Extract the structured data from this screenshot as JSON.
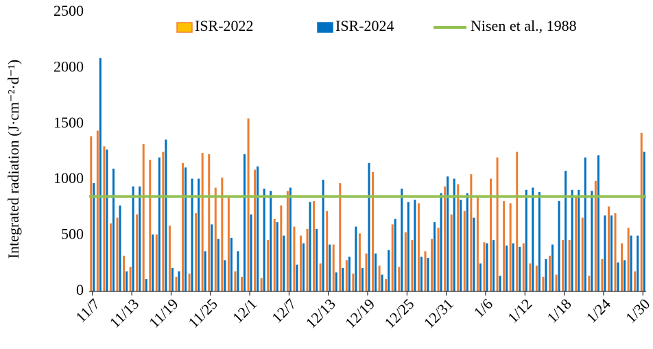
{
  "chart_data": {
    "type": "bar",
    "y_label": "Integrated radiation (J·cm⁻²·d⁻¹)",
    "categories": [
      "11/7",
      null,
      null,
      null,
      null,
      null,
      "11/13",
      null,
      null,
      null,
      null,
      null,
      "11/19",
      null,
      null,
      null,
      null,
      null,
      "11/25",
      null,
      null,
      null,
      null,
      null,
      "12/1",
      null,
      null,
      null,
      null,
      null,
      "12/7",
      null,
      null,
      null,
      null,
      null,
      "12/13",
      null,
      null,
      null,
      null,
      null,
      "12/19",
      null,
      null,
      null,
      null,
      null,
      "12/25",
      null,
      null,
      null,
      null,
      null,
      "12/31",
      null,
      null,
      null,
      null,
      null,
      "1/6",
      null,
      null,
      null,
      null,
      null,
      "1/12",
      null,
      null,
      null,
      null,
      null,
      "1/18",
      null,
      null,
      null,
      null,
      null,
      "1/24",
      null,
      null,
      null,
      null,
      null,
      "1/30"
    ],
    "series": [
      {
        "name": "ISR-2022",
        "color": "#ed7d31",
        "legend_fill": "#ffc000",
        "values": [
          1390,
          1440,
          1300,
          610,
          660,
          320,
          220,
          690,
          1320,
          1180,
          510,
          1250,
          590,
          130,
          1150,
          160,
          700,
          1240,
          1230,
          930,
          1020,
          840,
          180,
          130,
          1550,
          1090,
          120,
          460,
          650,
          770,
          900,
          580,
          500,
          560,
          810,
          250,
          720,
          420,
          970,
          280,
          160,
          520,
          340,
          1070,
          230,
          110,
          600,
          220,
          530,
          460,
          790,
          360,
          470,
          570,
          940,
          690,
          960,
          720,
          1050,
          840,
          440,
          1010,
          1200,
          810,
          790,
          1250,
          430,
          250,
          230,
          130,
          320,
          150,
          460,
          460,
          840,
          660,
          140,
          990,
          290,
          760,
          700,
          430,
          570,
          180,
          1420
        ]
      },
      {
        "name": "ISR-2024",
        "color": "#0070c0",
        "values": [
          970,
          2090,
          1270,
          1100,
          770,
          180,
          940,
          940,
          110,
          510,
          1200,
          1360,
          210,
          180,
          1110,
          1010,
          1010,
          360,
          600,
          470,
          280,
          480,
          360,
          1230,
          690,
          1120,
          920,
          900,
          620,
          500,
          930,
          240,
          430,
          800,
          560,
          1000,
          420,
          170,
          210,
          310,
          580,
          210,
          1150,
          340,
          150,
          370,
          650,
          920,
          800,
          820,
          310,
          300,
          620,
          880,
          1030,
          1010,
          820,
          880,
          660,
          250,
          430,
          460,
          140,
          410,
          430,
          400,
          910,
          930,
          890,
          290,
          420,
          810,
          1080,
          910,
          910,
          1200,
          900,
          1220,
          680,
          680,
          260,
          280,
          500,
          500,
          1250
        ]
      }
    ],
    "reference_lines": [
      {
        "name": "Nisen et al., 1988",
        "value": 850,
        "color": "#92c050"
      }
    ],
    "ylim": [
      0,
      2500
    ],
    "yticks": [
      0,
      500,
      1000,
      1500,
      2000,
      2500
    ],
    "grid": false
  }
}
